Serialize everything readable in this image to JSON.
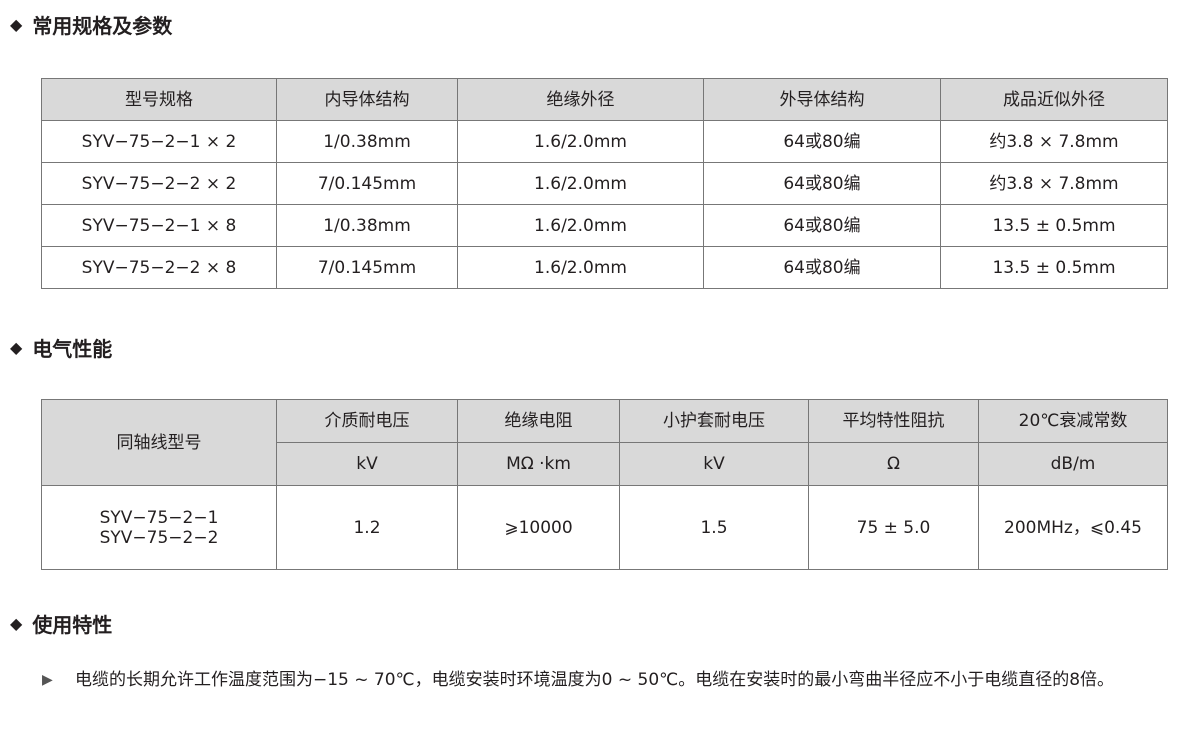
{
  "sections": [
    {
      "title": "常用规格及参数"
    },
    {
      "title": "电气性能"
    },
    {
      "title": "使用特性"
    }
  ],
  "table1": {
    "headers": [
      "型号规格",
      "内导体结构",
      "绝缘外径",
      "外导体结构",
      "成品近似外径"
    ],
    "rows": [
      [
        "SYV−75−2−1 × 2",
        "1/0.38mm",
        "1.6/2.0mm",
        "64或80编",
        "约3.8 × 7.8mm"
      ],
      [
        "SYV−75−2−2 × 2",
        "7/0.145mm",
        "1.6/2.0mm",
        "64或80编",
        "约3.8 × 7.8mm"
      ],
      [
        "SYV−75−2−1 × 8",
        "1/0.38mm",
        "1.6/2.0mm",
        "64或80编",
        "13.5 ± 0.5mm"
      ],
      [
        "SYV−75−2−2 × 8",
        "7/0.145mm",
        "1.6/2.0mm",
        "64或80编",
        "13.5 ± 0.5mm"
      ]
    ]
  },
  "table2": {
    "headers": [
      "同轴线型号",
      "介质耐电压",
      "绝缘电阻",
      "小护套耐电压",
      "平均特性阻抗",
      "20℃衰减常数"
    ],
    "units": [
      "kV",
      "MΩ ·km",
      "kV",
      "Ω",
      "dB/m"
    ],
    "row": {
      "model_1": "SYV−75−2−1",
      "model_2": "SYV−75−2−2",
      "values": [
        "1.2",
        "⩾10000",
        "1.5",
        "75 ± 5.0",
        "200MHz，⩽0.45"
      ]
    }
  },
  "usage": {
    "text": "电缆的长期允许工作温度范围为−15 ~ 70℃，电缆安装时环境温度为0 ~ 50℃。电缆在安装时的最小弯曲半径应不小于电缆直径的8倍。"
  }
}
